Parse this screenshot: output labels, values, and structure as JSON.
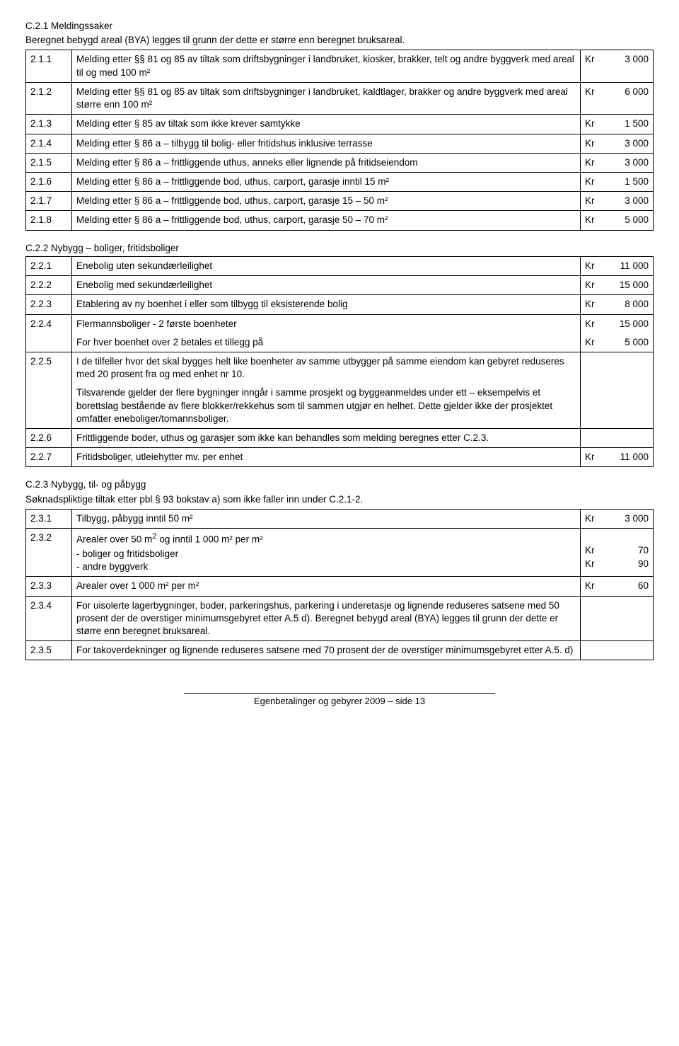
{
  "sectionC21": {
    "title": "C.2.1 Meldingssaker",
    "intro": "Beregnet bebygd areal (BYA) legges til grunn der dette er større enn beregnet bruksareal.",
    "rows": [
      {
        "num": "2.1.1",
        "desc": "Melding etter §§ 81 og 85 av tiltak som driftsbygninger i landbruket, kiosker, brakker, telt og andre byggverk med areal til og med 100 m²",
        "kr": "Kr",
        "val": "3 000"
      },
      {
        "num": "2.1.2",
        "desc": "Melding etter §§ 81 og 85 av tiltak som driftsbygninger i landbruket, kaldtlager, brakker og andre byggverk med areal større enn 100 m²",
        "kr": "Kr",
        "val": "6 000"
      },
      {
        "num": "2.1.3",
        "desc": "Melding etter § 85 av tiltak som ikke krever samtykke",
        "kr": "Kr",
        "val": "1 500"
      },
      {
        "num": "2.1.4",
        "desc": "Melding etter § 86 a – tilbygg til bolig- eller fritidshus inklusive terrasse",
        "kr": "Kr",
        "val": "3 000"
      },
      {
        "num": "2.1.5",
        "desc": "Melding etter § 86 a – frittliggende uthus, anneks eller lignende på fritidseiendom",
        "kr": "Kr",
        "val": "3 000"
      },
      {
        "num": "2.1.6",
        "desc": "Melding etter § 86 a – frittliggende bod, uthus, carport, garasje inntil 15 m²",
        "kr": "Kr",
        "val": "1 500"
      },
      {
        "num": "2.1.7",
        "desc": "Melding etter § 86 a – frittliggende bod, uthus, carport, garasje 15 – 50 m²",
        "kr": "Kr",
        "val": "3 000"
      },
      {
        "num": "2.1.8",
        "desc": "Melding etter § 86 a – frittliggende bod, uthus, carport, garasje 50 – 70 m²",
        "kr": "Kr",
        "val": "5 000"
      }
    ]
  },
  "sectionC22": {
    "title": "C.2.2 Nybygg – boliger, fritidsboliger",
    "rows221": {
      "num": "2.2.1",
      "desc": "Enebolig uten sekundærleilighet",
      "kr": "Kr",
      "val": "11 000"
    },
    "rows222": {
      "num": "2.2.2",
      "desc": "Enebolig med sekundærleilighet",
      "kr": "Kr",
      "val": "15 000"
    },
    "rows223": {
      "num": "2.2.3",
      "desc": "Etablering av ny boenhet i eller som tilbygg til eksisterende bolig",
      "kr": "Kr ",
      "val": "8 000"
    },
    "rows224": {
      "num": "2.2.4",
      "desc1": "Flermannsboliger - 2 første boenheter",
      "kr1": "Kr",
      "val1": "15 000",
      "desc2": "For hver boenhet over 2 betales et tillegg på",
      "kr2": "Kr ",
      "val2": "5 000"
    },
    "rows225": {
      "num": "2.2.5",
      "p1": "I de tilfeller hvor det skal bygges helt like boenheter av samme utbygger på samme eiendom kan gebyret reduseres med 20 prosent fra og med enhet nr 10.",
      "p2": "Tilsvarende gjelder der flere bygninger inngår i samme prosjekt og byggeanmeldes under ett – eksempelvis et borettslag bestående av flere blokker/rekkehus som til sammen utgjør en helhet. Dette gjelder ikke der prosjektet omfatter eneboliger/tomannsboliger."
    },
    "rows226": {
      "num": "2.2.6",
      "desc": "Frittliggende boder, uthus og garasjer som ikke kan behandles som melding beregnes etter C.2.3."
    },
    "rows227": {
      "num": "2.2.7",
      "desc": "Fritidsboliger, utleiehytter mv. per enhet",
      "kr": "Kr",
      "val": "11 000"
    }
  },
  "sectionC23": {
    "title": "C.2.3 Nybygg, til- og påbygg",
    "intro": "Søknadspliktige tiltak etter pbl § 93 bokstav a) som ikke faller inn under C.2.1-2.",
    "rows231": {
      "num": "2.3.1",
      "desc": "Tilbygg, påbygg inntil 50 m²",
      "kr": "Kr ",
      "val": "3 000"
    },
    "rows232": {
      "num": "2.3.2",
      "desc": "Arealer over 50 m² og inntil 1 000 m² per m²",
      "sub1": "- boliger og fritidsboliger",
      "kr1": "Kr",
      "val1": "70",
      "sub2": "- andre byggverk",
      "kr2": "Kr",
      "val2": "90"
    },
    "rows233": {
      "num": "2.3.3",
      "desc": "Arealer over 1 000 m² per m²",
      "kr": "Kr",
      "val": "60"
    },
    "rows234": {
      "num": "2.3.4",
      "desc": "For uisolerte lagerbygninger, boder, parkeringshus, parkering i underetasje og lignende reduseres satsene med 50 prosent der de overstiger minimumsgebyret etter A.5 d). Beregnet bebygd areal (BYA) legges til grunn der dette er større enn beregnet bruksareal."
    },
    "rows235": {
      "num": "2.3.5",
      "desc": "For takoverdekninger og lignende reduseres satsene med 70 prosent der de overstiger minimumsgebyret etter A.5. d)"
    }
  },
  "footer": "Egenbetalinger og gebyrer 2009 – side 13"
}
